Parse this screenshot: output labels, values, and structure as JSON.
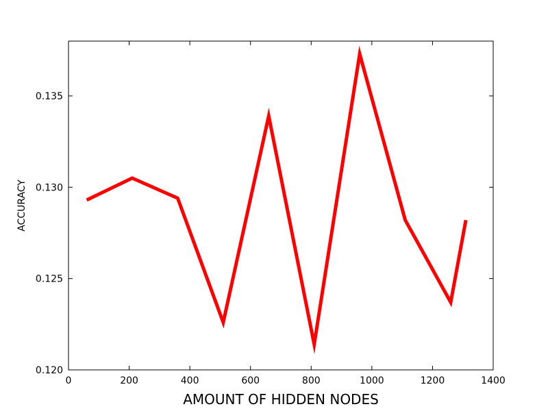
{
  "chart_data": {
    "type": "line",
    "title": "",
    "xlabel": "AMOUNT OF HIDDEN NODES",
    "ylabel": "ACCURACY",
    "xlim": [
      0,
      1400
    ],
    "ylim": [
      0.12,
      0.138
    ],
    "x_ticks": [
      0,
      200,
      400,
      600,
      800,
      1000,
      1200,
      1400
    ],
    "x_tick_labels": [
      "0",
      "200",
      "400",
      "600",
      "800",
      "1000",
      "1200",
      "1400"
    ],
    "y_ticks": [
      0.12,
      0.125,
      0.13,
      0.135
    ],
    "y_tick_labels": [
      "0.120",
      "0.125",
      "0.130",
      "0.135"
    ],
    "grid": false,
    "series": [
      {
        "color": "#ff0000",
        "x": [
          60,
          210,
          360,
          510,
          660,
          810,
          960,
          1110,
          1260,
          1310
        ],
        "y": [
          0.1293,
          0.1305,
          0.1294,
          0.1226,
          0.1339,
          0.1214,
          0.1373,
          0.1282,
          0.1237,
          0.1282
        ]
      }
    ]
  }
}
